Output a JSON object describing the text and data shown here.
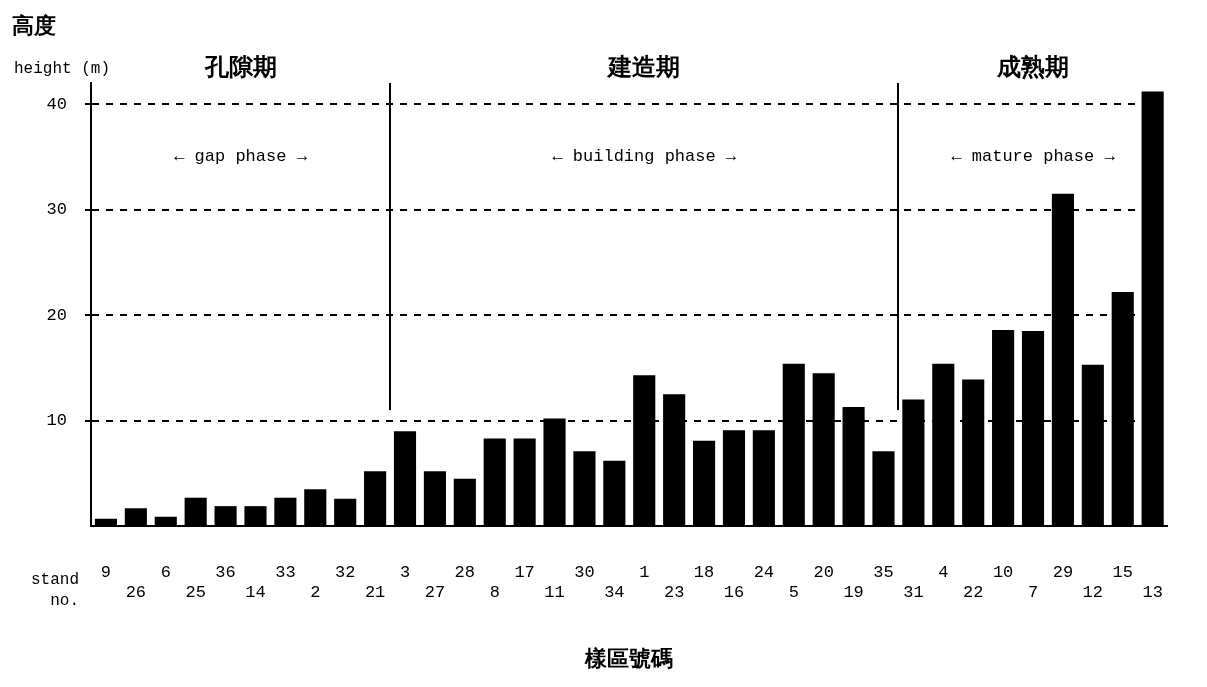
{
  "chart_data": {
    "type": "bar",
    "ylabel": "高度",
    "xlabel": "樣區號碼",
    "categories": [
      "9",
      "26",
      "6",
      "25",
      "36",
      "14",
      "33",
      "2",
      "32",
      "21",
      "3",
      "27",
      "28",
      "8",
      "17",
      "11",
      "30",
      "34",
      "1",
      "23",
      "18",
      "16",
      "24",
      "5",
      "20",
      "19",
      "35",
      "31",
      "4",
      "22",
      "10",
      "7",
      "29",
      "12",
      "15",
      "13"
    ],
    "values": [
      0.7,
      1.7,
      0.9,
      2.7,
      1.9,
      1.9,
      2.7,
      3.5,
      2.6,
      5.2,
      9.0,
      5.2,
      4.5,
      8.3,
      8.3,
      10.2,
      7.1,
      6.2,
      14.3,
      12.5,
      8.1,
      9.1,
      9.1,
      15.4,
      14.5,
      11.3,
      7.1,
      12.0,
      15.4,
      13.9,
      18.6,
      18.5,
      31.5,
      15.3,
      22.2,
      41.2
    ],
    "color": "#000000",
    "ylim": [
      0,
      42
    ],
    "yticks": [
      10,
      20,
      30,
      40
    ],
    "grid": "y",
    "annotations": [
      "height (m)",
      "stand\nno.",
      "孔隙期",
      "建造期",
      "成熟期",
      "← gap phase →",
      "← building phase →",
      "← mature phase →"
    ]
  }
}
